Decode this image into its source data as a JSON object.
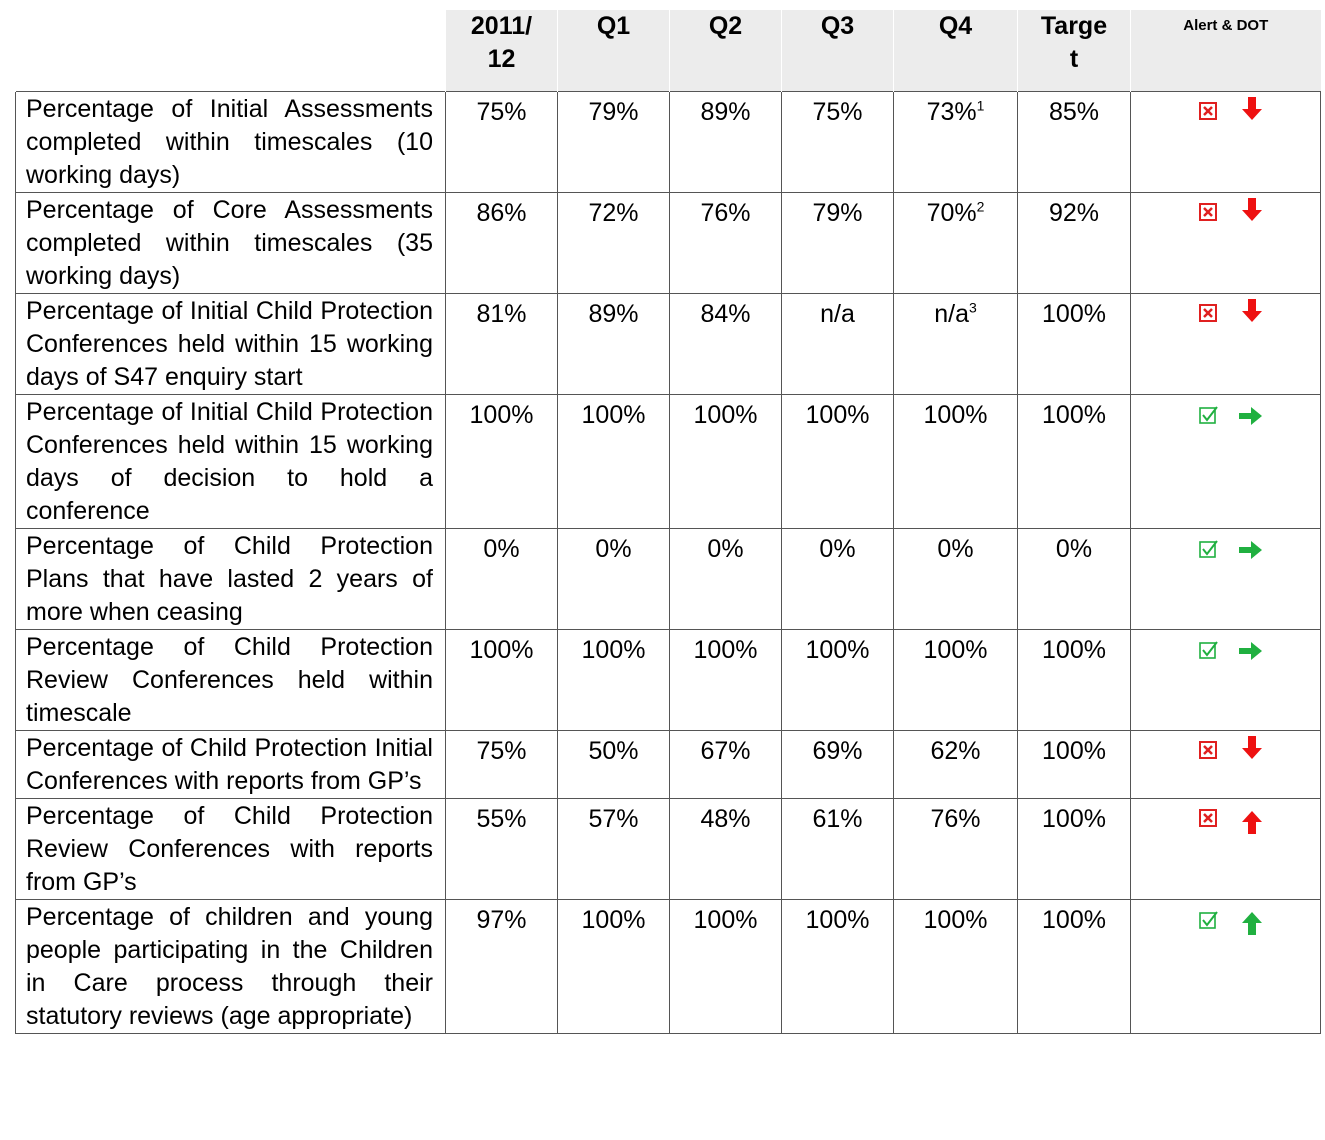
{
  "table": {
    "header": [
      "2011/12",
      "Q1",
      "Q2",
      "Q3",
      "Q4",
      "Target",
      "Alert & DOT"
    ],
    "rows": [
      {
        "label": "Percentage of Initial Assessments completed within timescales (10 working days)",
        "cells": [
          "75%",
          "79%",
          "89%",
          "75%",
          {
            "text": "73%",
            "sup": "1"
          },
          "85%"
        ]
      },
      {
        "label": "Percentage of Core Assessments completed within timescales (35 working days)",
        "cells": [
          "86%",
          "72%",
          "76%",
          "79%",
          {
            "text": "70%",
            "sup": "2"
          },
          "92%"
        ]
      },
      {
        "label": "Percentage of Initial Child Protection Conferences held within 15 working days of S47 enquiry start",
        "cells": [
          "81%",
          "89%",
          "84%",
          "n/a",
          {
            "text": "n/a",
            "sup": "3"
          },
          "100%"
        ]
      },
      {
        "label": "Percentage of Initial Child Protection Conferences held within 15 working days of decision to hold a conference",
        "cells": [
          "100%",
          "100%",
          "100%",
          "100%",
          "100%",
          "100%"
        ]
      },
      {
        "label": "Percentage of Child Protection Plans that have lasted 2 years of more when ceasing",
        "cells": [
          "0%",
          "0%",
          "0%",
          "0%",
          "0%",
          "0%"
        ]
      },
      {
        "label": "Percentage of Child Protection Review Conferences held within timescale",
        "cells": [
          "100%",
          "100%",
          "100%",
          "100%",
          "100%",
          "100%"
        ]
      },
      {
        "label": "Percentage of Child Protection Initial Conferences with reports from GP’s",
        "cells": [
          "75%",
          "50%",
          "67%",
          "69%",
          "62%",
          "100%"
        ]
      },
      {
        "label": "Percentage of Child Protection Review Conferences with reports from GP’s",
        "cells": [
          "55%",
          "57%",
          "48%",
          "61%",
          "76%",
          "100%"
        ]
      },
      {
        "label": "Percentage of children and young people participating in the Children in Care process through their statutory reviews (age appropriate)",
        "cells": [
          "97%",
          "100%",
          "100%",
          "100%",
          "100%",
          "100%"
        ]
      }
    ]
  }
}
